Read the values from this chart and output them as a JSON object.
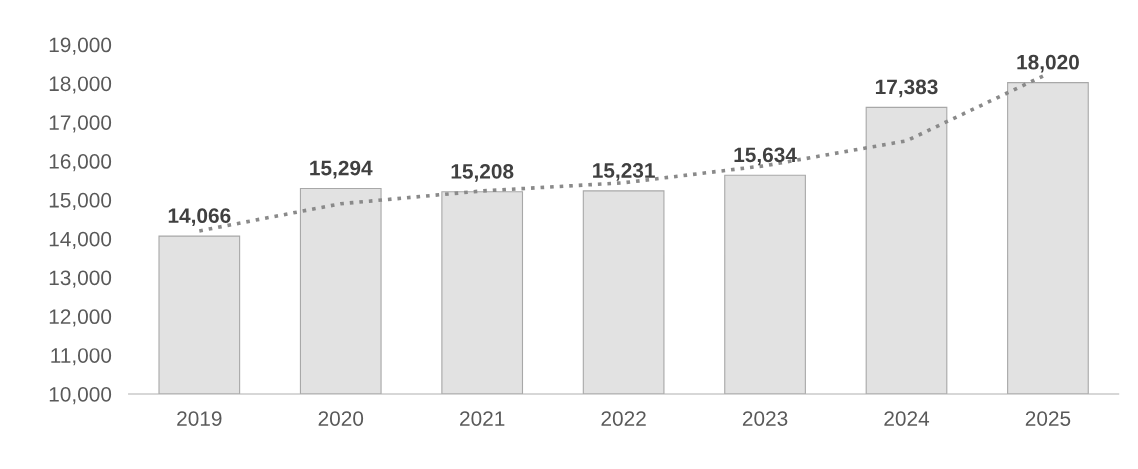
{
  "chart_data": {
    "type": "bar",
    "categories": [
      "2019",
      "2020",
      "2021",
      "2022",
      "2023",
      "2024",
      "2025"
    ],
    "series": [
      {
        "color": "#e2e2e2",
        "values": [
          14066,
          15294,
          15208,
          15231,
          15634,
          17383,
          18020
        ],
        "value_labels": [
          "14,066",
          "15,294",
          "15,208",
          "15,231",
          "15,634",
          "17,383",
          "18,020"
        ]
      },
      {
        "type": "line",
        "color": "#8a8a8a",
        "line_style": "dotted",
        "values": [
          14200,
          14900,
          15230,
          15440,
          15880,
          16520,
          18250
        ]
      }
    ],
    "ylim": [
      10000,
      19000
    ],
    "yticks": [
      {
        "value": 10000,
        "label": "10,000"
      },
      {
        "value": 11000,
        "label": "11,000"
      },
      {
        "value": 12000,
        "label": "12,000"
      },
      {
        "value": 13000,
        "label": "13,000"
      },
      {
        "value": 14000,
        "label": "14,000"
      },
      {
        "value": 15000,
        "label": "15,000"
      },
      {
        "value": 16000,
        "label": "16,000"
      },
      {
        "value": 17000,
        "label": "17,000"
      },
      {
        "value": 18000,
        "label": "18,000"
      },
      {
        "value": 19000,
        "label": "19,000"
      }
    ],
    "grid": false,
    "legend": false
  }
}
